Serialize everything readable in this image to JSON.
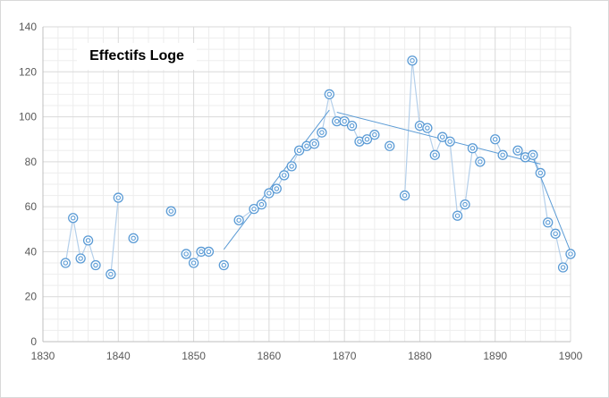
{
  "chart_data": {
    "type": "scatter",
    "title": "Effectifs Loge",
    "xlabel": "",
    "ylabel": "",
    "xlim": [
      1830,
      1900
    ],
    "ylim": [
      0,
      140
    ],
    "x_ticks": [
      1830,
      1840,
      1850,
      1860,
      1870,
      1880,
      1890,
      1900
    ],
    "y_ticks": [
      0,
      20,
      40,
      60,
      80,
      100,
      120,
      140
    ],
    "x_tick_labels": [
      "1830",
      "1840",
      "1850",
      "1860",
      "1870",
      "1880",
      "1890",
      "1900"
    ],
    "y_tick_labels": [
      "0",
      "20",
      "40",
      "60",
      "80",
      "100",
      "120",
      "140"
    ],
    "grid": true,
    "minor_grid": true,
    "legend": "none",
    "marker_color": "#5b9bd5",
    "line_color": "#b4cfea",
    "trend_color": "#5b9bd5",
    "series": [
      {
        "x": [
          1833,
          1834,
          1835,
          1836,
          1837,
          1839,
          1840,
          1842,
          1847,
          1849,
          1850,
          1851,
          1852,
          1854,
          1856,
          1858,
          1859,
          1860,
          1861,
          1862,
          1863,
          1864,
          1865,
          1866,
          1867,
          1868,
          1869,
          1870,
          1871,
          1872,
          1873,
          1874,
          1876,
          1878,
          1879,
          1880,
          1881,
          1882,
          1883,
          1884,
          1885,
          1886,
          1887,
          1888,
          1890,
          1891,
          1893,
          1894,
          1895,
          1896,
          1897,
          1898,
          1899,
          1900
        ],
        "y": [
          35,
          55,
          37,
          45,
          34,
          30,
          64,
          46,
          58,
          39,
          35,
          40,
          40,
          34,
          54,
          59,
          61,
          66,
          68,
          74,
          78,
          85,
          87,
          88,
          93,
          110,
          98,
          98,
          96,
          89,
          90,
          92,
          87,
          65,
          125,
          96,
          95,
          83,
          91,
          89,
          56,
          61,
          86,
          80,
          90,
          83,
          85,
          82,
          83,
          75,
          53,
          48,
          33,
          39
        ]
      }
    ],
    "connected_segments": [
      [
        1833,
        1834,
        1835,
        1836,
        1837
      ],
      [
        1839,
        1840
      ],
      [
        1849,
        1850,
        1851,
        1852
      ],
      [
        1856,
        1858,
        1859,
        1860,
        1861,
        1862,
        1863,
        1864,
        1865,
        1866,
        1867,
        1868,
        1869,
        1870,
        1871,
        1872,
        1873,
        1874
      ],
      [
        1878,
        1879,
        1880,
        1881,
        1882,
        1883,
        1884,
        1885,
        1886,
        1887,
        1888
      ],
      [
        1890,
        1891
      ],
      [
        1893,
        1894,
        1895,
        1896,
        1897,
        1898,
        1899,
        1900
      ]
    ],
    "trend_lines": [
      {
        "x": [
          1854,
          1868
        ],
        "y": [
          41,
          103
        ]
      },
      {
        "x": [
          1869,
          1896
        ],
        "y": [
          102,
          79
        ]
      },
      {
        "x": [
          1895,
          1900
        ],
        "y": [
          82,
          40
        ]
      }
    ]
  }
}
